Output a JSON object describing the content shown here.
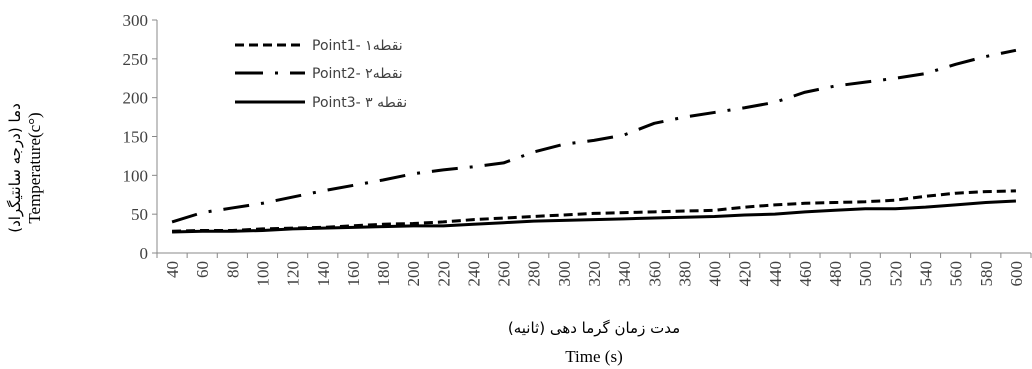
{
  "chart_data": {
    "type": "line",
    "x": [
      40,
      60,
      80,
      100,
      120,
      140,
      160,
      180,
      200,
      220,
      240,
      260,
      280,
      300,
      320,
      340,
      360,
      380,
      400,
      420,
      440,
      460,
      480,
      500,
      520,
      540,
      560,
      580,
      600
    ],
    "series": [
      {
        "name": "Point1- نقطه۱",
        "dash": "short-dash",
        "color": "#000000",
        "values": [
          28,
          29,
          29,
          31,
          32,
          33,
          35,
          37,
          38,
          40,
          43,
          45,
          47,
          49,
          51,
          52,
          53,
          54,
          55,
          59,
          62,
          64,
          65,
          66,
          68,
          73,
          77,
          79,
          80
        ]
      },
      {
        "name": "Point2- نقطه۲",
        "dash": "dash-dot",
        "color": "#000000",
        "values": [
          40,
          52,
          58,
          64,
          72,
          80,
          87,
          94,
          102,
          107,
          111,
          116,
          130,
          140,
          145,
          152,
          167,
          175,
          181,
          187,
          194,
          207,
          215,
          220,
          225,
          231,
          243,
          253,
          261
        ]
      },
      {
        "name": "Point3- نقطه ۳",
        "dash": "solid",
        "color": "#000000",
        "values": [
          27,
          28,
          28,
          29,
          31,
          32,
          33,
          34,
          35,
          35,
          37,
          39,
          41,
          42,
          43,
          44,
          45,
          46,
          47,
          49,
          50,
          53,
          55,
          57,
          57,
          59,
          62,
          65,
          67
        ]
      }
    ],
    "xlabel_fa": "مدت زمان گرما دهی (ثانیه)",
    "xlabel_en": "Time (s)",
    "ylabel_fa": "دما (درجه سانتیگراد)",
    "ylabel_en": "Temperature(c°)",
    "ylim": [
      0,
      300
    ],
    "yticks": [
      0,
      50,
      100,
      150,
      200,
      250,
      300
    ],
    "grid": false,
    "legend_position": "top-left"
  }
}
